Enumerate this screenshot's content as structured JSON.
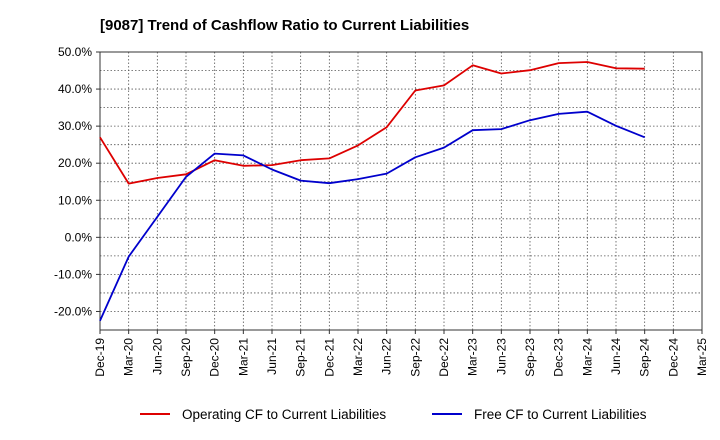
{
  "chart_data": {
    "type": "line",
    "title": "[9087]  Trend of Cashflow Ratio to Current Liabilities",
    "xlabel": "",
    "ylabel": "",
    "categories": [
      "Dec-19",
      "Mar-20",
      "Jun-20",
      "Sep-20",
      "Dec-20",
      "Mar-21",
      "Jun-21",
      "Sep-21",
      "Dec-21",
      "Mar-22",
      "Jun-22",
      "Sep-22",
      "Dec-22",
      "Mar-23",
      "Jun-23",
      "Sep-23",
      "Dec-23",
      "Mar-24",
      "Jun-24",
      "Sep-24",
      "Dec-24",
      "Mar-25"
    ],
    "ylim": [
      -25,
      50
    ],
    "yticks": [
      50,
      40,
      30,
      20,
      10,
      0,
      -10,
      -20
    ],
    "ytick_labels": [
      "50.0%",
      "40.0%",
      "30.0%",
      "20.0%",
      "10.0%",
      "0.0%",
      "-10.0%",
      "-20.0%"
    ],
    "grid": true,
    "legend_position": "bottom",
    "series": [
      {
        "name": "Operating CF to Current Liabilities",
        "color": "#dd0000",
        "values": [
          27.0,
          14.5,
          16.0,
          17.0,
          20.8,
          19.3,
          19.5,
          20.8,
          21.3,
          24.8,
          29.7,
          39.6,
          41.0,
          46.4,
          44.2,
          45.1,
          47.0,
          47.3,
          45.6,
          45.5,
          null,
          null
        ]
      },
      {
        "name": "Free CF to Current Liabilities",
        "color": "#0000cc",
        "values": [
          -22.5,
          -5.2,
          5.5,
          16.3,
          22.6,
          22.1,
          18.3,
          15.3,
          14.6,
          15.7,
          17.2,
          21.6,
          24.2,
          28.9,
          29.2,
          31.6,
          33.3,
          33.9,
          30.1,
          27.0,
          null,
          null
        ]
      }
    ]
  }
}
